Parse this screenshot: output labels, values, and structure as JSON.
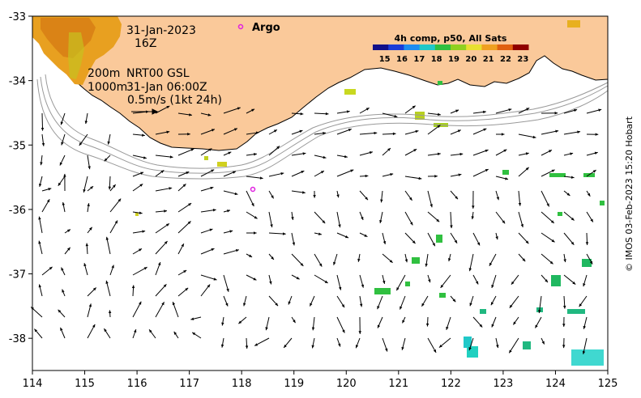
{
  "map": {
    "x_ticks": [
      "114",
      "115",
      "116",
      "117",
      "118",
      "119",
      "120",
      "121",
      "122",
      "123",
      "124",
      "125"
    ],
    "y_ticks": [
      "-33",
      "-34",
      "-35",
      "-36",
      "-37",
      "-38"
    ],
    "lon_range": [
      114,
      125
    ],
    "lat_range": [
      -38.5,
      -33
    ],
    "land_color": "#fac99a",
    "contour_color": "#999999"
  },
  "info": {
    "date_line1": "31-Jan-2023",
    "date_line2": "16Z",
    "depth1": "200m",
    "model": "NRT00 GSL",
    "depth2": "1000m",
    "model_time": "31-Jan 06:00Z",
    "scale_label": "0.5m/s (1kt 24h)"
  },
  "argo": {
    "label": "Argo",
    "color": "#e020e0"
  },
  "colorbar": {
    "title": "4h comp, p50, All Sats",
    "labels": [
      "15",
      "16",
      "17",
      "18",
      "19",
      "20",
      "21",
      "22",
      "23"
    ],
    "colors": [
      "#10108a",
      "#1a3cd8",
      "#1e8cf0",
      "#20c8c8",
      "#30c040",
      "#90d020",
      "#e8e030",
      "#f0a020",
      "#e06010",
      "#900000"
    ]
  },
  "credit": "© IMOS 03-Feb-2023 15:20 Hobart"
}
